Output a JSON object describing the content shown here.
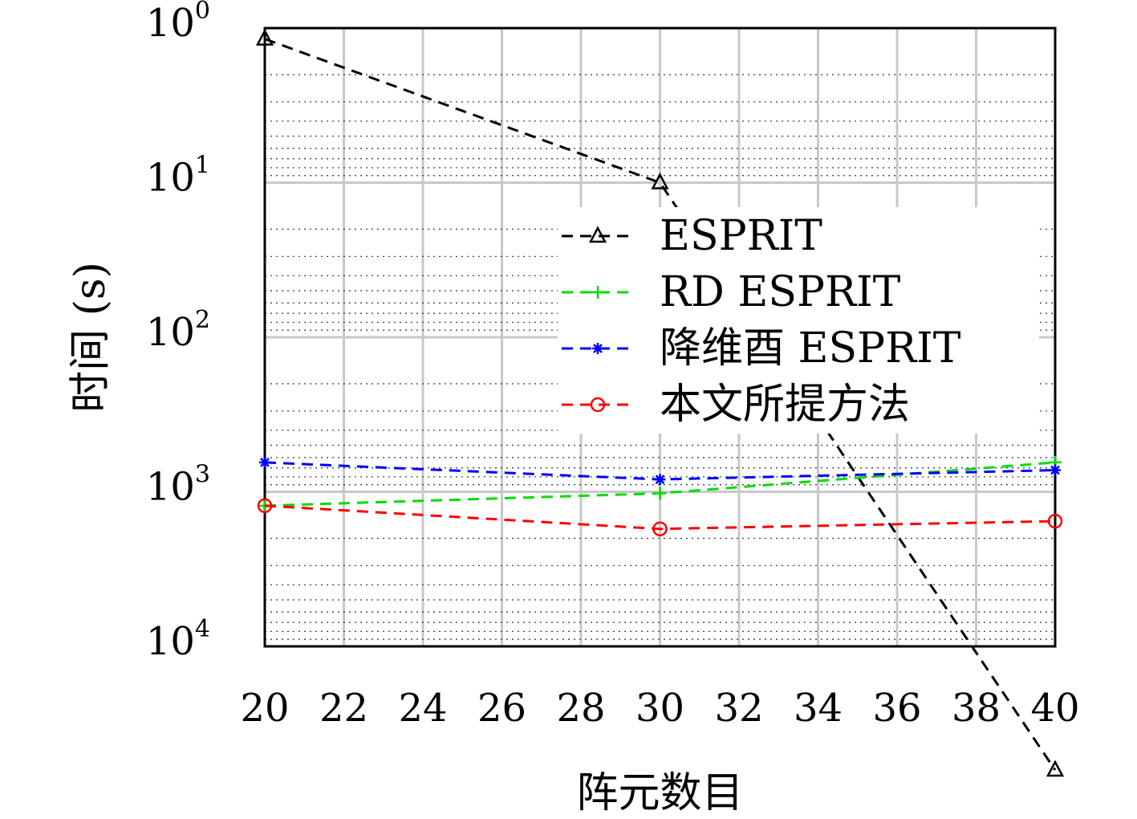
{
  "chart_data": {
    "type": "line",
    "xlabel": "阵元数目",
    "ylabel": "时间 (s)",
    "x": [
      20,
      30,
      40
    ],
    "xlim": [
      20,
      40
    ],
    "x_ticks": [
      20,
      22,
      24,
      26,
      28,
      30,
      32,
      34,
      36,
      38,
      40
    ],
    "y_scale": "log",
    "y_ticks": [
      {
        "base": "10",
        "exp": "0"
      },
      {
        "base": "10",
        "exp": "1"
      },
      {
        "base": "10",
        "exp": "2"
      },
      {
        "base": "10",
        "exp": "3"
      },
      {
        "base": "10",
        "exp": "4"
      }
    ],
    "grid": true,
    "legend_position": "upper-right",
    "series": [
      {
        "name": "ESPRIT",
        "color": "#000000",
        "marker": "triangle",
        "values": [
          0.07,
          1.0,
          4.8
        ]
      },
      {
        "name": "RD ESPRIT",
        "color": "#00dd00",
        "marker": "plus",
        "values": [
          3.09,
          3.01,
          2.81
        ]
      },
      {
        "name": "降维酉 ESPRIT",
        "color": "#0000ff",
        "marker": "asterisk",
        "values": [
          2.81,
          2.92,
          2.86
        ]
      },
      {
        "name": "本文所提方法",
        "color": "#ff0000",
        "marker": "circle",
        "values": [
          3.09,
          3.24,
          3.19
        ]
      }
    ]
  }
}
